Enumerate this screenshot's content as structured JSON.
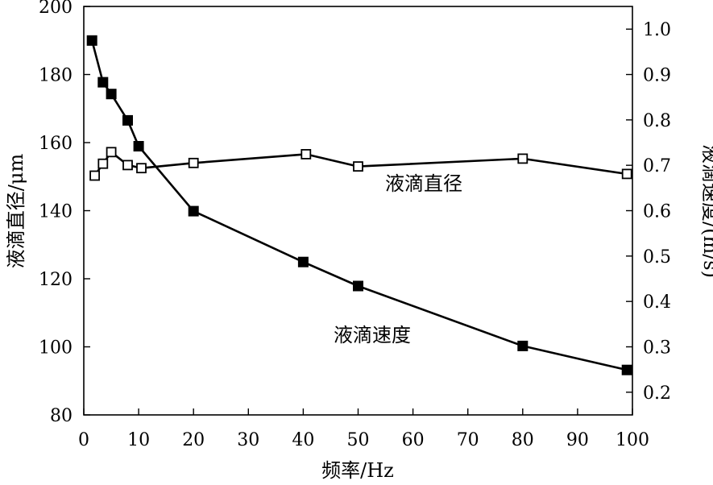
{
  "chart_data": {
    "type": "line",
    "xlabel": "频率/Hz",
    "ylabel_left": "液滴直径/μm",
    "ylabel_right": "液滴速度/(m/s)",
    "xlim": [
      0,
      100
    ],
    "ylim_left": [
      80,
      200
    ],
    "ylim_right": [
      0.15,
      1.05
    ],
    "x_ticks": [
      0,
      10,
      20,
      30,
      40,
      50,
      60,
      70,
      80,
      90,
      100
    ],
    "y_left_ticks": [
      80,
      100,
      120,
      140,
      160,
      180,
      200
    ],
    "y_right_ticks": [
      0.2,
      0.3,
      0.4,
      0.5,
      0.6,
      0.7,
      0.8,
      0.9,
      1.0
    ],
    "y_right_tick_labels": [
      "0.2",
      "0.3",
      "0.4",
      "0.5",
      "0.6",
      "0.7",
      "0.8",
      "0.9",
      "1.0"
    ],
    "grid": false,
    "legend": "none",
    "series": [
      {
        "name": "液滴直径",
        "axis": "left",
        "marker": "open-square",
        "x": [
          2,
          3.5,
          5,
          8,
          10.5,
          20,
          40.5,
          50,
          80,
          99
        ],
        "y": [
          150.3,
          153.8,
          157.2,
          153.4,
          152.5,
          154.0,
          156.6,
          153.0,
          155.3,
          150.8
        ]
      },
      {
        "name": "液滴速度",
        "axis": "right",
        "marker": "filled-square",
        "x": [
          1.5,
          3.5,
          5,
          8,
          10,
          20,
          40,
          50,
          80,
          99
        ],
        "y": [
          0.975,
          0.883,
          0.857,
          0.799,
          0.742,
          0.599,
          0.487,
          0.434,
          0.302,
          0.249
        ]
      }
    ],
    "annotations": [
      {
        "text": "液滴直径",
        "series": "液滴直径"
      },
      {
        "text": "液滴速度",
        "series": "液滴速度"
      }
    ]
  }
}
